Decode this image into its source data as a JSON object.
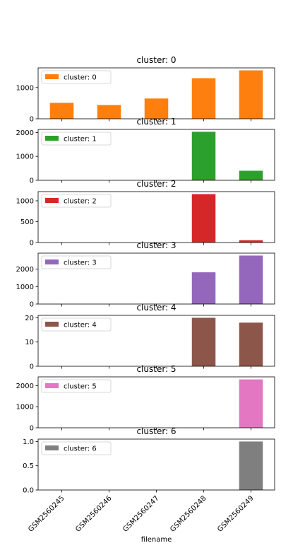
{
  "chart_data": {
    "type": "bar",
    "layout": "stacked-subplots",
    "xlabel": "filename",
    "categories": [
      "GSM2560245",
      "GSM2560246",
      "GSM2560247",
      "GSM2560248",
      "GSM2560249"
    ],
    "subplots": [
      {
        "title": "cluster: 0",
        "name": "cluster: 0",
        "color": "#ff7f0e",
        "values": [
          510,
          440,
          650,
          1300,
          1550
        ],
        "ylim": [
          0,
          1630
        ],
        "yticks": [
          0,
          1000
        ]
      },
      {
        "title": "cluster: 1",
        "name": "cluster: 1",
        "color": "#2ca02c",
        "values": [
          0,
          0,
          0,
          2030,
          400
        ],
        "ylim": [
          0,
          2130
        ],
        "yticks": [
          0,
          1000,
          2000
        ]
      },
      {
        "title": "cluster: 2",
        "name": "cluster: 2",
        "color": "#d62728",
        "values": [
          0,
          0,
          0,
          1160,
          55
        ],
        "ylim": [
          0,
          1220
        ],
        "yticks": [
          0,
          500,
          1000
        ]
      },
      {
        "title": "cluster: 3",
        "name": "cluster: 3",
        "color": "#9467bd",
        "values": [
          0,
          0,
          0,
          1820,
          2780
        ],
        "ylim": [
          0,
          2920
        ],
        "yticks": [
          0,
          1000,
          2000
        ]
      },
      {
        "title": "cluster: 4",
        "name": "cluster: 4",
        "color": "#8c564b",
        "values": [
          0,
          0,
          0,
          20,
          18
        ],
        "ylim": [
          0,
          21
        ],
        "yticks": [
          0,
          10,
          20
        ]
      },
      {
        "title": "cluster: 5",
        "name": "cluster: 5",
        "color": "#e377c2",
        "values": [
          0,
          0,
          0,
          0,
          2300
        ],
        "ylim": [
          0,
          2420
        ],
        "yticks": [
          0,
          1000,
          2000
        ]
      },
      {
        "title": "cluster: 6",
        "name": "cluster: 6",
        "color": "#7f7f7f",
        "values": [
          0,
          0,
          0,
          0,
          1.0
        ],
        "ylim": [
          0,
          1.05
        ],
        "yticks": [
          0.0,
          0.5,
          1.0
        ],
        "ytick_labels": [
          "0.0",
          "0.5",
          "1.0"
        ]
      }
    ]
  }
}
